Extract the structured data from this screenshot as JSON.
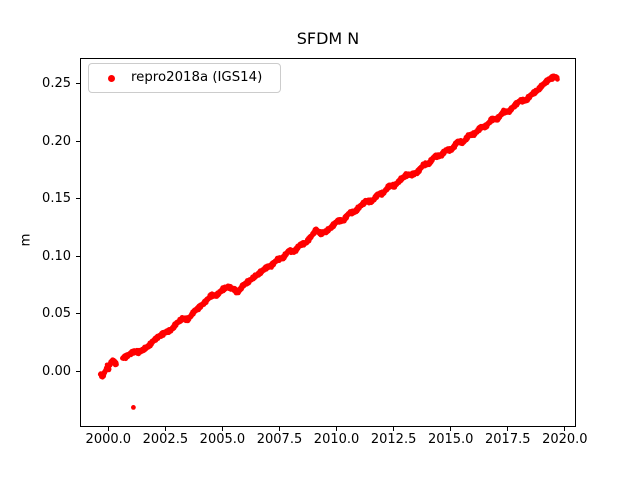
{
  "chart_data": {
    "type": "scatter",
    "title": "SFDM N",
    "xlabel": "",
    "ylabel": "m",
    "grid": false,
    "legend": {
      "position": "upper left"
    },
    "colors": {
      "marker": "#ff0000",
      "spine": "#000000",
      "legend_border": "#cccccc",
      "background": "#ffffff"
    },
    "axes": {
      "xlim": [
        1998.76,
        2020.49
      ],
      "ylim": [
        -0.048,
        0.272
      ],
      "x_ticks": [
        2000.0,
        2002.5,
        2005.0,
        2007.5,
        2010.0,
        2012.5,
        2015.0,
        2017.5,
        2020.0
      ],
      "x_tick_labels": [
        "2000.0",
        "2002.5",
        "2005.0",
        "2007.5",
        "2010.0",
        "2012.5",
        "2015.0",
        "2017.5",
        "2020.0"
      ],
      "y_ticks": [
        0.0,
        0.05,
        0.1,
        0.15,
        0.2,
        0.25
      ],
      "y_tick_labels": [
        "0.00",
        "0.05",
        "0.10",
        "0.15",
        "0.20",
        "0.25"
      ]
    },
    "series": [
      {
        "name": "repro2018a (IGS14)",
        "marker": "dot",
        "color": "#ff0000",
        "units": "m (years on x)",
        "segments": [
          [
            1999.65,
            2000.36
          ],
          [
            2000.62,
            2019.68
          ]
        ],
        "anchors": [
          [
            1999.65,
            -0.0015
          ],
          [
            1999.72,
            -0.004
          ],
          [
            1999.8,
            -0.0025
          ],
          [
            1999.88,
            0.001
          ],
          [
            1999.95,
            0.0048
          ],
          [
            2000.02,
            0.0022
          ],
          [
            2000.1,
            0.008
          ],
          [
            2000.2,
            0.0098
          ],
          [
            2000.28,
            0.0075
          ],
          [
            2000.36,
            0.007
          ],
          [
            2000.62,
            0.0118
          ],
          [
            2000.8,
            0.0132
          ],
          [
            2001.0,
            0.016
          ],
          [
            2001.15,
            0.0177
          ],
          [
            2001.3,
            0.0168
          ],
          [
            2001.45,
            0.018
          ],
          [
            2001.6,
            0.02
          ],
          [
            2001.8,
            0.0228
          ],
          [
            2002.0,
            0.0272
          ],
          [
            2002.25,
            0.031
          ],
          [
            2002.5,
            0.034
          ],
          [
            2002.75,
            0.036
          ],
          [
            2003.0,
            0.0421
          ],
          [
            2003.25,
            0.046
          ],
          [
            2003.5,
            0.0452
          ],
          [
            2003.75,
            0.052
          ],
          [
            2004.0,
            0.056
          ],
          [
            2004.25,
            0.0605
          ],
          [
            2004.5,
            0.066
          ],
          [
            2004.75,
            0.0662
          ],
          [
            2005.0,
            0.0712
          ],
          [
            2005.25,
            0.0735
          ],
          [
            2005.5,
            0.0715
          ],
          [
            2005.68,
            0.0685
          ],
          [
            2005.9,
            0.0748
          ],
          [
            2006.15,
            0.0782
          ],
          [
            2006.4,
            0.0822
          ],
          [
            2006.65,
            0.0858
          ],
          [
            2006.9,
            0.09
          ],
          [
            2007.15,
            0.092
          ],
          [
            2007.4,
            0.0972
          ],
          [
            2007.65,
            0.0985
          ],
          [
            2007.9,
            0.1048
          ],
          [
            2008.15,
            0.104
          ],
          [
            2008.4,
            0.11
          ],
          [
            2008.65,
            0.1115
          ],
          [
            2008.9,
            0.1175
          ],
          [
            2009.1,
            0.123
          ],
          [
            2009.3,
            0.1198
          ],
          [
            2009.55,
            0.1215
          ],
          [
            2009.8,
            0.1258
          ],
          [
            2010.05,
            0.1308
          ],
          [
            2010.3,
            0.131
          ],
          [
            2010.55,
            0.1375
          ],
          [
            2010.8,
            0.1385
          ],
          [
            2011.05,
            0.1438
          ],
          [
            2011.3,
            0.148
          ],
          [
            2011.55,
            0.1475
          ],
          [
            2011.8,
            0.1535
          ],
          [
            2012.05,
            0.1548
          ],
          [
            2012.3,
            0.161
          ],
          [
            2012.55,
            0.1612
          ],
          [
            2012.8,
            0.1665
          ],
          [
            2013.05,
            0.1705
          ],
          [
            2013.3,
            0.1708
          ],
          [
            2013.55,
            0.173
          ],
          [
            2013.8,
            0.1793
          ],
          [
            2014.05,
            0.1805
          ],
          [
            2014.3,
            0.1868
          ],
          [
            2014.55,
            0.187
          ],
          [
            2014.8,
            0.1922
          ],
          [
            2015.05,
            0.1925
          ],
          [
            2015.3,
            0.1995
          ],
          [
            2015.55,
            0.1988
          ],
          [
            2015.8,
            0.205
          ],
          [
            2016.05,
            0.2062
          ],
          [
            2016.3,
            0.2115
          ],
          [
            2016.55,
            0.2128
          ],
          [
            2016.8,
            0.2188
          ],
          [
            2017.05,
            0.219
          ],
          [
            2017.3,
            0.2252
          ],
          [
            2017.55,
            0.2255
          ],
          [
            2017.8,
            0.2308
          ],
          [
            2018.05,
            0.235
          ],
          [
            2018.3,
            0.2352
          ],
          [
            2018.55,
            0.2405
          ],
          [
            2018.8,
            0.2438
          ],
          [
            2019.05,
            0.249
          ],
          [
            2019.25,
            0.2525
          ],
          [
            2019.45,
            0.255
          ],
          [
            2019.58,
            0.2556
          ],
          [
            2019.68,
            0.2545
          ]
        ],
        "outliers": [
          [
            2001.1,
            -0.031
          ]
        ]
      }
    ]
  }
}
